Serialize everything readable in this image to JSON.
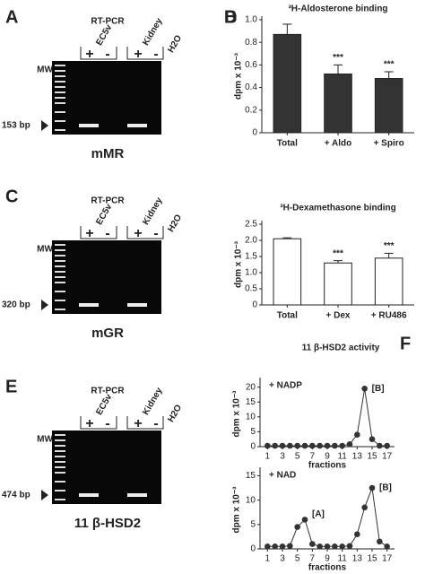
{
  "gels": [
    {
      "panel": "A",
      "title": "RT-PCR",
      "lane_groups": [
        "EC5v",
        "Kidney"
      ],
      "lanes": [
        "MW",
        "+",
        "-",
        "+",
        "-",
        "H2O"
      ],
      "size": "153 bp",
      "caption": "mMR"
    },
    {
      "panel": "C",
      "title": "RT-PCR",
      "lane_groups": [
        "EC5v",
        "Kidney"
      ],
      "lanes": [
        "MW",
        "+",
        "-",
        "+",
        "-",
        "H2O"
      ],
      "size": "320 bp",
      "caption": "mGR"
    },
    {
      "panel": "E",
      "title": "RT-PCR",
      "lane_groups": [
        "EC5v",
        "Kidney"
      ],
      "lanes": [
        "MW",
        "+",
        "-",
        "+",
        "-",
        "H2O"
      ],
      "size": "474 bp",
      "caption": "11 β-HSD2"
    }
  ],
  "chart_data": [
    {
      "type": "bar",
      "panel": "B",
      "title": "³H-Aldosterone binding",
      "y_label": "dpm x 10⁻³",
      "categories": [
        "Total",
        "+ Aldo",
        "+ Spiro"
      ],
      "values": [
        0.87,
        0.52,
        0.48
      ],
      "errors": [
        0.09,
        0.08,
        0.06
      ],
      "annotations": [
        null,
        "***",
        "***"
      ],
      "color": "#333333",
      "ylim": [
        0,
        1
      ],
      "yticks": [
        0,
        0.2,
        0.4,
        0.6,
        0.8,
        {
          "value": 1,
          "label": "1.0"
        }
      ]
    },
    {
      "type": "bar",
      "panel": "D",
      "title": "³H-Dexamethasone binding",
      "y_label": "dpm x 10⁻³",
      "categories": [
        "Total",
        "+ Dex",
        "+ RU486"
      ],
      "values": [
        2.05,
        1.3,
        1.45
      ],
      "errors": [
        0.03,
        0.07,
        0.15
      ],
      "annotations": [
        null,
        "***",
        "***"
      ],
      "color": "#ffffff",
      "ylim": [
        0,
        2.5
      ],
      "yticks": [
        0,
        0.5,
        {
          "value": 1,
          "label": "1.0"
        },
        1.5,
        {
          "value": 2,
          "label": "2.0"
        },
        2.5
      ]
    },
    {
      "type": "line",
      "panel": "F",
      "title": "11 β-HSD2 activity",
      "y_label": "dpm x 10⁻³",
      "x_label": "fractions",
      "x": [
        1,
        2,
        3,
        4,
        5,
        6,
        7,
        8,
        9,
        10,
        11,
        12,
        13,
        14,
        15,
        16,
        17
      ],
      "series": [
        {
          "name": "+ NADP",
          "color": "#333333",
          "values": [
            0.3,
            0.3,
            0.3,
            0.3,
            0.3,
            0.3,
            0.3,
            0.3,
            0.3,
            0.3,
            0.3,
            0.8,
            4,
            19.5,
            2.5,
            0.3,
            0.3
          ]
        }
      ],
      "annotations": [
        "[B]"
      ],
      "xlim": [
        0,
        18
      ],
      "xticks": [
        1,
        3,
        5,
        7,
        9,
        11,
        13,
        15,
        17
      ],
      "ylim": [
        0,
        22
      ],
      "yticks": [
        0,
        5,
        10,
        15,
        20
      ]
    },
    {
      "type": "line",
      "y_label": "dpm x 10⁻³",
      "x_label": "fractions",
      "x": [
        1,
        2,
        3,
        4,
        5,
        6,
        7,
        8,
        9,
        10,
        11,
        12,
        13,
        14,
        15,
        16,
        17
      ],
      "series": [
        {
          "name": "+ NAD",
          "color": "#333333",
          "values": [
            0.5,
            0.5,
            0.5,
            0.6,
            4.5,
            6,
            1,
            0.5,
            0.5,
            0.5,
            0.5,
            0.6,
            3,
            8.5,
            12.5,
            1.5,
            0.5
          ]
        }
      ],
      "annotations": [
        "[A]",
        "[B]"
      ],
      "xlim": [
        0,
        18
      ],
      "xticks": [
        1,
        3,
        5,
        7,
        9,
        11,
        13,
        15,
        17
      ],
      "ylim": [
        0,
        16
      ],
      "yticks": [
        0,
        5,
        10,
        15
      ]
    }
  ]
}
